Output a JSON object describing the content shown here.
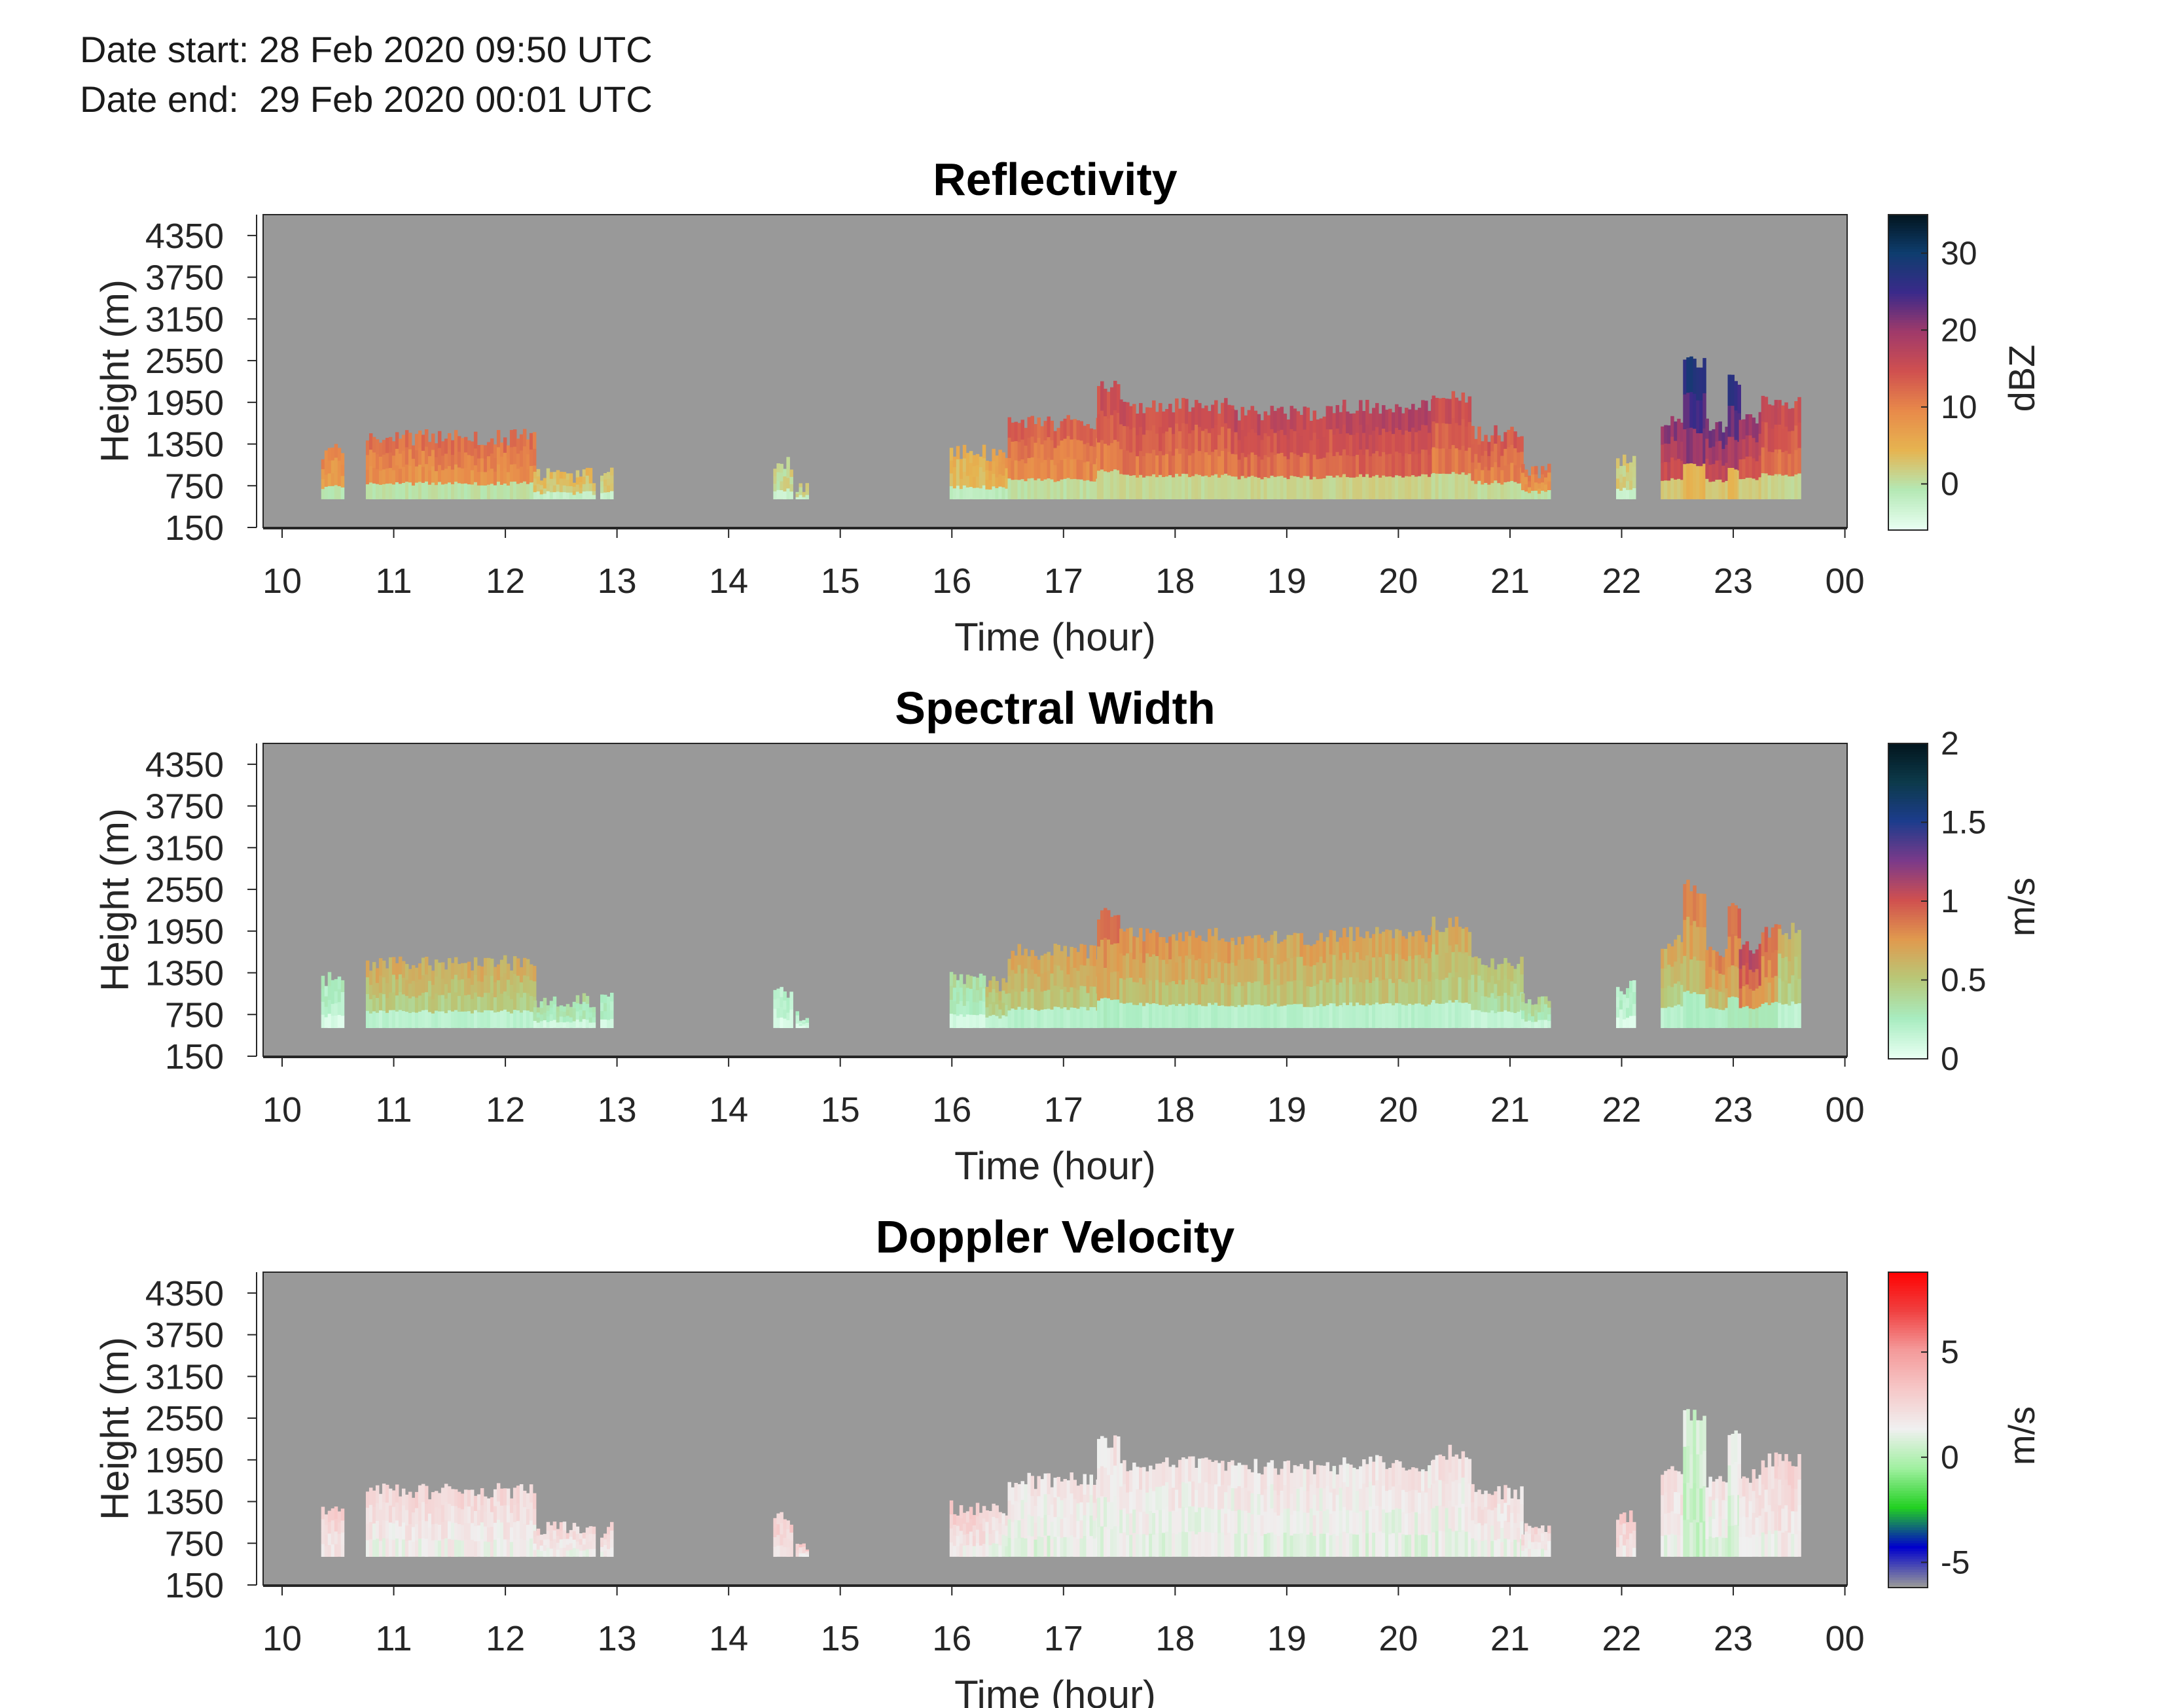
{
  "header": {
    "date_start": "Date start: 28 Feb 2020 09:50 UTC",
    "date_end": "Date end:  29 Feb 2020 00:01 UTC"
  },
  "colors": {
    "background": "#999999",
    "reflectivity_colormap": [
      "#e8fff2",
      "#b4e8b4",
      "#e6b450",
      "#e88a4a",
      "#d0504f",
      "#a03a6a",
      "#3a2a8a",
      "#0e3d6e",
      "#02141c"
    ],
    "spectral_colormap": [
      "#e8fff2",
      "#a8ecc0",
      "#b8c878",
      "#e09a4e",
      "#d0504f",
      "#7a3a8a",
      "#1c3c8c",
      "#0c3a4a",
      "#02141c"
    ],
    "velocity_colormap": [
      "#999999",
      "#0000cc",
      "#22d022",
      "#a0f0a0",
      "#f0f0f0",
      "#f6c8c8",
      "#f49a9a",
      "#f04040",
      "#ff0000"
    ]
  },
  "chart_data": [
    {
      "type": "heatmap",
      "title": "Reflectivity",
      "xlabel": "Time (hour)",
      "ylabel": "Height (m)",
      "x_ticks": [
        "10",
        "11",
        "12",
        "13",
        "14",
        "15",
        "16",
        "17",
        "18",
        "19",
        "20",
        "21",
        "22",
        "23",
        "00"
      ],
      "y_ticks": [
        "4350",
        "3750",
        "3150",
        "2550",
        "1950",
        "1350",
        "750",
        "150"
      ],
      "xlim": [
        9.83,
        24.02
      ],
      "ylim": [
        150,
        4650
      ],
      "colorbar": {
        "label": "dBZ",
        "ticks": [
          "30",
          "20",
          "10",
          "0"
        ],
        "range": [
          -6,
          35
        ]
      },
      "echo_segments": [
        {
          "start": 10.35,
          "end": 10.55,
          "top": 1250,
          "level": 8
        },
        {
          "start": 10.75,
          "end": 12.25,
          "top": 1450,
          "level": 10
        },
        {
          "start": 12.25,
          "end": 12.8,
          "top": 900,
          "level": 3
        },
        {
          "start": 12.85,
          "end": 12.95,
          "top": 900,
          "level": 2
        },
        {
          "start": 14.4,
          "end": 14.55,
          "top": 1100,
          "level": 1
        },
        {
          "start": 14.6,
          "end": 14.7,
          "top": 700,
          "level": 1
        },
        {
          "start": 15.98,
          "end": 16.3,
          "top": 1250,
          "level": 4
        },
        {
          "start": 16.3,
          "end": 16.5,
          "top": 1200,
          "level": 6
        },
        {
          "start": 16.5,
          "end": 17.3,
          "top": 1650,
          "level": 11
        },
        {
          "start": 17.3,
          "end": 17.5,
          "top": 2200,
          "level": 13
        },
        {
          "start": 17.5,
          "end": 18.5,
          "top": 1900,
          "level": 13
        },
        {
          "start": 18.5,
          "end": 19.5,
          "top": 1800,
          "level": 14
        },
        {
          "start": 19.5,
          "end": 20.3,
          "top": 1900,
          "level": 15
        },
        {
          "start": 20.3,
          "end": 20.65,
          "top": 2000,
          "level": 13
        },
        {
          "start": 20.65,
          "end": 21.1,
          "top": 1500,
          "level": 12
        },
        {
          "start": 21.1,
          "end": 21.35,
          "top": 950,
          "level": 9
        },
        {
          "start": 21.95,
          "end": 22.1,
          "top": 1150,
          "level": 2
        },
        {
          "start": 22.35,
          "end": 22.55,
          "top": 1700,
          "level": 18
        },
        {
          "start": 22.55,
          "end": 22.75,
          "top": 2500,
          "level": 24
        },
        {
          "start": 22.75,
          "end": 22.95,
          "top": 1600,
          "level": 19
        },
        {
          "start": 22.95,
          "end": 23.05,
          "top": 2300,
          "level": 22
        },
        {
          "start": 23.05,
          "end": 23.25,
          "top": 1700,
          "level": 17
        },
        {
          "start": 23.25,
          "end": 23.4,
          "top": 1950,
          "level": 14
        },
        {
          "start": 23.4,
          "end": 23.58,
          "top": 1950,
          "level": 13
        }
      ]
    },
    {
      "type": "heatmap",
      "title": "Spectral Width",
      "xlabel": "Time (hour)",
      "ylabel": "Height (m)",
      "x_ticks": [
        "10",
        "11",
        "12",
        "13",
        "14",
        "15",
        "16",
        "17",
        "18",
        "19",
        "20",
        "21",
        "22",
        "23",
        "00"
      ],
      "y_ticks": [
        "4350",
        "3750",
        "3150",
        "2550",
        "1950",
        "1350",
        "750",
        "150"
      ],
      "xlim": [
        9.83,
        24.02
      ],
      "ylim": [
        150,
        4650
      ],
      "colorbar": {
        "label": "m/s",
        "ticks": [
          "2",
          "1.5",
          "1",
          "0.5",
          "0"
        ],
        "range": [
          0,
          2
        ]
      },
      "echo_segments": [
        {
          "start": 10.35,
          "end": 10.55,
          "top": 1250,
          "level": 0.2
        },
        {
          "start": 10.75,
          "end": 12.25,
          "top": 1500,
          "level": 0.55
        },
        {
          "start": 12.25,
          "end": 12.8,
          "top": 950,
          "level": 0.3
        },
        {
          "start": 12.85,
          "end": 12.95,
          "top": 950,
          "level": 0.25
        },
        {
          "start": 14.4,
          "end": 14.55,
          "top": 1100,
          "level": 0.15
        },
        {
          "start": 14.6,
          "end": 14.7,
          "top": 700,
          "level": 0.15
        },
        {
          "start": 15.98,
          "end": 16.3,
          "top": 1250,
          "level": 0.3
        },
        {
          "start": 16.3,
          "end": 16.5,
          "top": 1200,
          "level": 0.5
        },
        {
          "start": 16.5,
          "end": 17.3,
          "top": 1650,
          "level": 0.6
        },
        {
          "start": 17.3,
          "end": 17.5,
          "top": 2200,
          "level": 0.75
        },
        {
          "start": 17.5,
          "end": 18.5,
          "top": 1900,
          "level": 0.65
        },
        {
          "start": 18.5,
          "end": 19.5,
          "top": 1850,
          "level": 0.6
        },
        {
          "start": 19.5,
          "end": 20.3,
          "top": 1900,
          "level": 0.6
        },
        {
          "start": 20.3,
          "end": 20.65,
          "top": 2050,
          "level": 0.55
        },
        {
          "start": 20.65,
          "end": 21.1,
          "top": 1500,
          "level": 0.45
        },
        {
          "start": 21.1,
          "end": 21.35,
          "top": 950,
          "level": 0.35
        },
        {
          "start": 21.95,
          "end": 22.1,
          "top": 1150,
          "level": 0.2
        },
        {
          "start": 22.35,
          "end": 22.55,
          "top": 1800,
          "level": 0.55
        },
        {
          "start": 22.55,
          "end": 22.75,
          "top": 2600,
          "level": 0.7
        },
        {
          "start": 22.75,
          "end": 22.95,
          "top": 1650,
          "level": 0.7
        },
        {
          "start": 22.95,
          "end": 23.05,
          "top": 2300,
          "level": 0.8
        },
        {
          "start": 23.05,
          "end": 23.25,
          "top": 1700,
          "level": 0.95
        },
        {
          "start": 23.25,
          "end": 23.4,
          "top": 1950,
          "level": 0.8
        },
        {
          "start": 23.4,
          "end": 23.58,
          "top": 1950,
          "level": 0.5
        }
      ]
    },
    {
      "type": "heatmap",
      "title": "Doppler Velocity",
      "xlabel": "Time (hour)",
      "ylabel": "Height (m)",
      "x_ticks": [
        "10",
        "11",
        "12",
        "13",
        "14",
        "15",
        "16",
        "17",
        "18",
        "19",
        "20",
        "21",
        "22",
        "23",
        "00"
      ],
      "y_ticks": [
        "4350",
        "3750",
        "3150",
        "2550",
        "1950",
        "1350",
        "750",
        "150"
      ],
      "xlim": [
        9.83,
        24.02
      ],
      "ylim": [
        150,
        4650
      ],
      "colorbar": {
        "label": "m/s",
        "ticks": [
          "5",
          "0",
          "-5"
        ],
        "range": [
          -6.2,
          8.8
        ]
      },
      "echo_segments": [
        {
          "start": 10.35,
          "end": 10.55,
          "top": 1250,
          "level": 2.5
        },
        {
          "start": 10.75,
          "end": 12.25,
          "top": 1500,
          "level": 2
        },
        {
          "start": 12.25,
          "end": 12.8,
          "top": 950,
          "level": 2
        },
        {
          "start": 12.85,
          "end": 12.95,
          "top": 950,
          "level": 2.2
        },
        {
          "start": 14.4,
          "end": 14.55,
          "top": 1100,
          "level": 2.5
        },
        {
          "start": 14.6,
          "end": 14.7,
          "top": 700,
          "level": 2.5
        },
        {
          "start": 15.98,
          "end": 16.3,
          "top": 1250,
          "level": 2.4
        },
        {
          "start": 16.3,
          "end": 16.5,
          "top": 1200,
          "level": 1.8
        },
        {
          "start": 16.5,
          "end": 17.3,
          "top": 1650,
          "level": 1.5
        },
        {
          "start": 17.3,
          "end": 17.5,
          "top": 2200,
          "level": 1.6
        },
        {
          "start": 17.5,
          "end": 18.5,
          "top": 1900,
          "level": 1.6
        },
        {
          "start": 18.5,
          "end": 19.5,
          "top": 1850,
          "level": 1.5
        },
        {
          "start": 19.5,
          "end": 20.3,
          "top": 1900,
          "level": 1.5
        },
        {
          "start": 20.3,
          "end": 20.65,
          "top": 2050,
          "level": 1.6
        },
        {
          "start": 20.65,
          "end": 21.1,
          "top": 1500,
          "level": 1.8
        },
        {
          "start": 21.1,
          "end": 21.35,
          "top": 950,
          "level": 2
        },
        {
          "start": 21.95,
          "end": 22.1,
          "top": 1150,
          "level": 2.5
        },
        {
          "start": 22.35,
          "end": 22.55,
          "top": 1800,
          "level": 1.8
        },
        {
          "start": 22.55,
          "end": 22.75,
          "top": 2600,
          "level": 0.6
        },
        {
          "start": 22.75,
          "end": 22.95,
          "top": 1650,
          "level": 1.5
        },
        {
          "start": 22.95,
          "end": 23.05,
          "top": 2300,
          "level": 1.2
        },
        {
          "start": 23.05,
          "end": 23.25,
          "top": 1700,
          "level": 1.8
        },
        {
          "start": 23.25,
          "end": 23.4,
          "top": 1950,
          "level": 2
        },
        {
          "start": 23.4,
          "end": 23.58,
          "top": 1950,
          "level": 2.2
        }
      ]
    }
  ]
}
